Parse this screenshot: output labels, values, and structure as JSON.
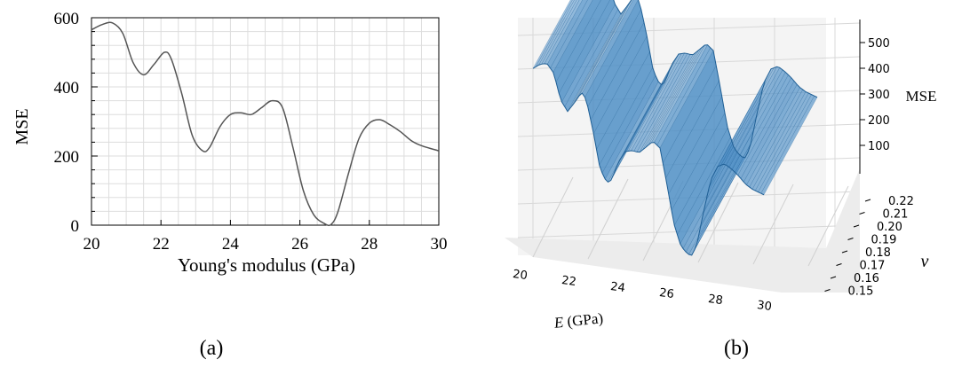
{
  "panels": {
    "a": {
      "label": "(a)"
    },
    "b": {
      "label": "(b)"
    }
  },
  "colors": {
    "line": "#555555",
    "grid": "#dddddd",
    "surface_fill": "#4f8fc6",
    "surface_edge": "#1f5f95"
  },
  "chart_data": [
    {
      "type": "line",
      "xlabel": "Young's modulus (GPa)",
      "ylabel": "MSE",
      "xlim": [
        20,
        30
      ],
      "ylim": [
        0,
        600
      ],
      "xticks": [
        "20",
        "22",
        "24",
        "26",
        "28",
        "30"
      ],
      "yticks": [
        "0",
        "200",
        "400",
        "600"
      ],
      "grid": true,
      "series": [
        {
          "x": [
            20.0,
            20.3,
            20.6,
            20.9,
            21.2,
            21.5,
            21.8,
            22.1,
            22.3,
            22.6,
            22.9,
            23.2,
            23.4,
            23.7,
            24.0,
            24.3,
            24.6,
            24.9,
            25.2,
            25.5,
            25.8,
            26.1,
            26.4,
            26.7,
            26.9,
            27.1,
            27.4,
            27.7,
            28.0,
            28.3,
            28.6,
            28.9,
            29.2,
            29.5,
            30.0
          ],
          "y": [
            565,
            580,
            585,
            555,
            470,
            435,
            465,
            500,
            480,
            380,
            260,
            215,
            225,
            285,
            320,
            325,
            320,
            340,
            360,
            340,
            225,
            100,
            30,
            5,
            2,
            40,
            150,
            250,
            295,
            305,
            290,
            270,
            245,
            230,
            215
          ]
        }
      ]
    },
    {
      "type": "surface",
      "xlabel": "E (GPa)",
      "ylabel": "ν",
      "zlabel": "MSE",
      "xticks": [
        "20",
        "22",
        "24",
        "26",
        "28",
        "30"
      ],
      "yticks": [
        "0.15",
        "0.16",
        "0.17",
        "0.18",
        "0.19",
        "0.20",
        "0.21",
        "0.22"
      ],
      "zticks": [
        "100",
        "200",
        "300",
        "400",
        "500"
      ]
    }
  ]
}
